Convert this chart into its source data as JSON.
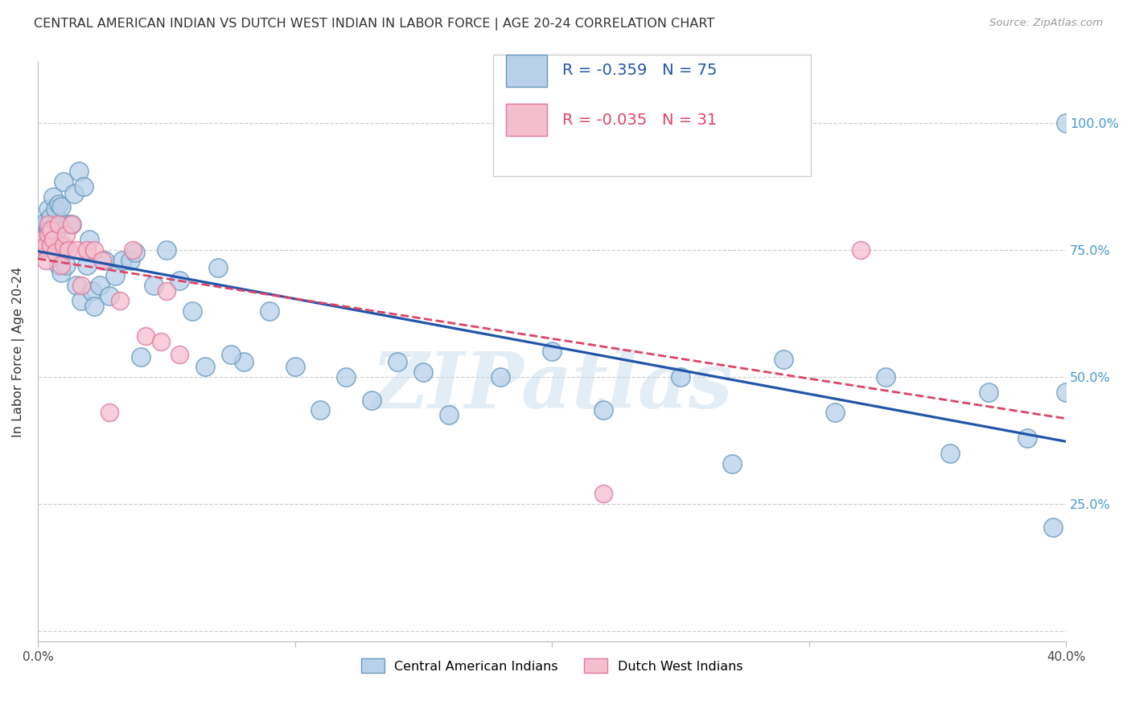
{
  "title": "CENTRAL AMERICAN INDIAN VS DUTCH WEST INDIAN IN LABOR FORCE | AGE 20-24 CORRELATION CHART",
  "source": "Source: ZipAtlas.com",
  "ylabel": "In Labor Force | Age 20-24",
  "xlim": [
    0.0,
    0.4
  ],
  "ylim": [
    -0.02,
    1.12
  ],
  "xticks": [
    0.0,
    0.1,
    0.2,
    0.3,
    0.4
  ],
  "xticklabels": [
    "0.0%",
    "",
    "",
    "",
    "40.0%"
  ],
  "ytick_positions": [
    0.0,
    0.25,
    0.5,
    0.75,
    1.0
  ],
  "ytick_labels_right": [
    "",
    "25.0%",
    "50.0%",
    "75.0%",
    "100.0%"
  ],
  "blue_R": -0.359,
  "blue_N": 75,
  "pink_R": -0.035,
  "pink_N": 31,
  "blue_fill": "#b8d0ea",
  "blue_edge": "#6699bb",
  "pink_fill": "#f5bece",
  "pink_edge": "#e07799",
  "blue_line_color": "#2255aa",
  "pink_line_color": "#dd4466",
  "grid_color": "#cccccc",
  "title_color": "#333333",
  "right_tick_color": "#4499cc",
  "watermark_color": "#c8dced",
  "blue_legend_text_color": "#2255aa",
  "pink_legend_text_color": "#dd4466",
  "blue_x": [
    0.001,
    0.001,
    0.002,
    0.002,
    0.002,
    0.003,
    0.003,
    0.003,
    0.004,
    0.004,
    0.004,
    0.005,
    0.005,
    0.005,
    0.006,
    0.006,
    0.007,
    0.007,
    0.007,
    0.008,
    0.008,
    0.009,
    0.009,
    0.01,
    0.01,
    0.011,
    0.012,
    0.013,
    0.014,
    0.015,
    0.016,
    0.017,
    0.018,
    0.019,
    0.02,
    0.021,
    0.022,
    0.024,
    0.026,
    0.028,
    0.03,
    0.033,
    0.036,
    0.04,
    0.045,
    0.05,
    0.055,
    0.06,
    0.065,
    0.07,
    0.08,
    0.09,
    0.1,
    0.11,
    0.12,
    0.14,
    0.16,
    0.18,
    0.2,
    0.22,
    0.25,
    0.27,
    0.29,
    0.31,
    0.33,
    0.355,
    0.37,
    0.385,
    0.395,
    0.4,
    0.038,
    0.075,
    0.13,
    0.15,
    0.4
  ],
  "blue_y": [
    0.755,
    0.76,
    0.77,
    0.785,
    0.795,
    0.755,
    0.78,
    0.805,
    0.765,
    0.79,
    0.83,
    0.76,
    0.78,
    0.815,
    0.77,
    0.855,
    0.775,
    0.8,
    0.83,
    0.72,
    0.84,
    0.705,
    0.835,
    0.755,
    0.885,
    0.72,
    0.8,
    0.8,
    0.86,
    0.68,
    0.905,
    0.65,
    0.875,
    0.72,
    0.77,
    0.67,
    0.64,
    0.68,
    0.73,
    0.66,
    0.7,
    0.73,
    0.73,
    0.54,
    0.68,
    0.75,
    0.69,
    0.63,
    0.52,
    0.715,
    0.53,
    0.63,
    0.52,
    0.435,
    0.5,
    0.53,
    0.425,
    0.5,
    0.55,
    0.435,
    0.5,
    0.33,
    0.535,
    0.43,
    0.5,
    0.35,
    0.47,
    0.38,
    0.205,
    0.47,
    0.745,
    0.545,
    0.455,
    0.51,
    1.0
  ],
  "pink_x": [
    0.001,
    0.001,
    0.002,
    0.003,
    0.003,
    0.004,
    0.004,
    0.005,
    0.005,
    0.006,
    0.007,
    0.008,
    0.009,
    0.01,
    0.011,
    0.012,
    0.013,
    0.015,
    0.017,
    0.019,
    0.022,
    0.025,
    0.028,
    0.032,
    0.037,
    0.042,
    0.048,
    0.055,
    0.22,
    0.32,
    0.05
  ],
  "pink_y": [
    0.755,
    0.76,
    0.77,
    0.76,
    0.73,
    0.8,
    0.78,
    0.76,
    0.79,
    0.77,
    0.745,
    0.8,
    0.72,
    0.76,
    0.78,
    0.75,
    0.8,
    0.75,
    0.68,
    0.75,
    0.75,
    0.73,
    0.43,
    0.65,
    0.75,
    0.58,
    0.57,
    0.545,
    0.27,
    0.75,
    0.67
  ]
}
